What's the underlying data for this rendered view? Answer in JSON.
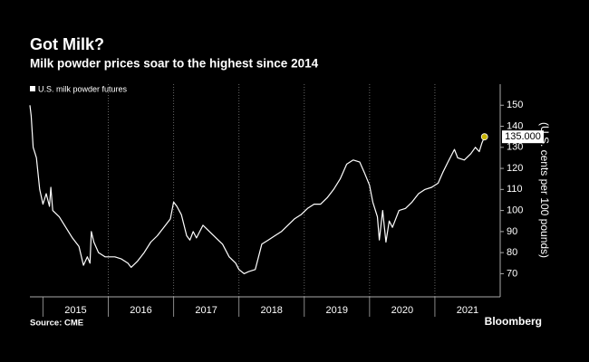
{
  "chart_data": {
    "type": "line",
    "title": "Got Milk?",
    "subtitle": "Milk powder prices soar to the highest since 2014",
    "y_axis_label": "(U.S. cents per 100 pounds)",
    "source": "Source: CME",
    "brand": "Bloomberg",
    "x": [
      2014.8,
      2014.82,
      2014.85,
      2014.88,
      2014.9,
      2014.95,
      2015.0,
      2015.05,
      2015.1,
      2015.12,
      2015.15,
      2015.25,
      2015.35,
      2015.45,
      2015.55,
      2015.62,
      2015.68,
      2015.72,
      2015.74,
      2015.78,
      2015.85,
      2015.95,
      2016.1,
      2016.2,
      2016.3,
      2016.35,
      2016.45,
      2016.55,
      2016.65,
      2016.75,
      2016.85,
      2016.95,
      2017.0,
      2017.05,
      2017.12,
      2017.2,
      2017.25,
      2017.3,
      2017.35,
      2017.45,
      2017.55,
      2017.65,
      2017.75,
      2017.85,
      2017.95,
      2018.0,
      2018.08,
      2018.15,
      2018.25,
      2018.3,
      2018.35,
      2018.45,
      2018.55,
      2018.65,
      2018.75,
      2018.85,
      2018.95,
      2019.05,
      2019.15,
      2019.25,
      2019.35,
      2019.45,
      2019.55,
      2019.65,
      2019.75,
      2019.85,
      2019.92,
      2020.0,
      2020.05,
      2020.12,
      2020.15,
      2020.2,
      2020.25,
      2020.3,
      2020.35,
      2020.45,
      2020.55,
      2020.65,
      2020.75,
      2020.85,
      2020.95,
      2021.05,
      2021.12,
      2021.2,
      2021.3,
      2021.35,
      2021.45,
      2021.55,
      2021.62,
      2021.68,
      2021.72,
      2021.76
    ],
    "series": [
      {
        "name": "U.S. milk powder futures",
        "color": "#ffffff",
        "values": [
          150,
          145,
          130,
          127,
          125,
          110,
          103,
          108,
          102,
          111,
          100,
          97,
          92,
          87,
          83,
          74,
          78,
          75,
          90,
          85,
          80,
          78,
          78,
          77,
          75,
          73,
          76,
          80,
          85,
          88,
          92,
          96,
          104,
          102,
          98,
          88,
          86,
          90,
          87,
          93,
          90,
          87,
          84,
          78,
          75,
          72,
          70,
          71,
          72,
          78,
          84,
          86,
          88,
          90,
          93,
          96,
          98,
          101,
          103,
          103,
          106,
          110,
          115,
          122,
          124,
          123,
          118,
          112,
          104,
          97,
          86,
          100,
          85,
          95,
          92,
          100,
          101,
          104,
          108,
          110,
          111,
          113,
          118,
          123,
          129,
          125,
          124,
          127,
          130,
          128,
          132,
          135
        ]
      }
    ],
    "annotations": [
      {
        "x": 2021.76,
        "y": 135,
        "label": "135.000"
      }
    ],
    "xlim": [
      2014.8,
      2022.0
    ],
    "xticks": [
      {
        "value": 2015,
        "label": "2015"
      },
      {
        "value": 2016,
        "label": "2016"
      },
      {
        "value": 2017,
        "label": "2017"
      },
      {
        "value": 2018,
        "label": "2018"
      },
      {
        "value": 2019,
        "label": "2019"
      },
      {
        "value": 2020,
        "label": "2020"
      },
      {
        "value": 2021,
        "label": "2021"
      }
    ],
    "ylim": [
      59,
      160
    ],
    "yticks": [
      70,
      80,
      90,
      100,
      110,
      120,
      130,
      140,
      150
    ],
    "grid": true
  }
}
